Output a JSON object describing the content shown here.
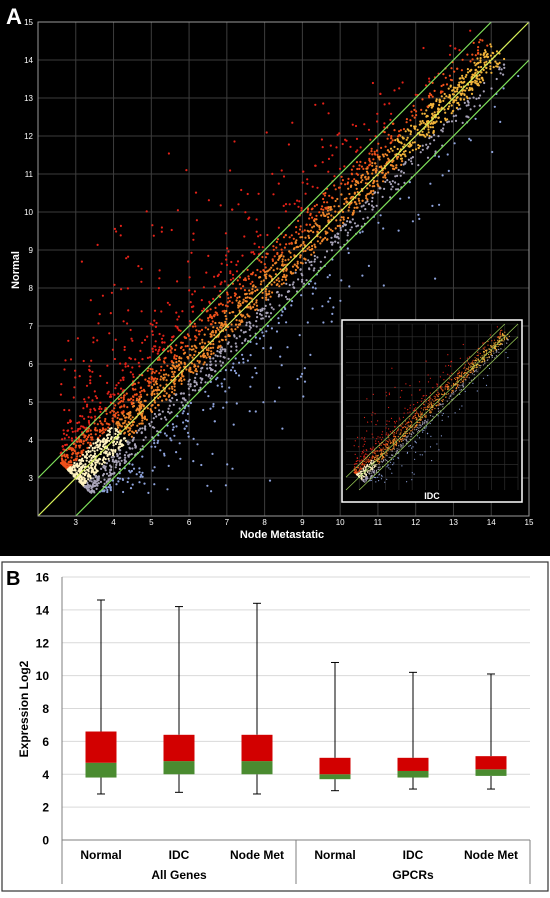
{
  "panel_a": {
    "letter": "A",
    "xlabel": "Node Metastatic",
    "ylabel": "Normal",
    "inset_label": "IDC",
    "x_ticks": [
      "3",
      "4",
      "5",
      "6",
      "7",
      "8",
      "9",
      "10",
      "11",
      "12",
      "13",
      "14",
      "15"
    ],
    "y_ticks": [
      "3",
      "4",
      "5",
      "6",
      "7",
      "8",
      "9",
      "10",
      "11",
      "12",
      "13",
      "14",
      "15"
    ]
  },
  "panel_b": {
    "letter": "B",
    "ylabel": "Expression Log2",
    "y_ticks": [
      "0",
      "2",
      "4",
      "6",
      "8",
      "10",
      "12",
      "14",
      "16"
    ],
    "groups": [
      "All Genes",
      "GPCRs"
    ]
  },
  "chart_data": [
    {
      "type": "scatter",
      "xlabel": "Node Metastatic",
      "ylabel": "Normal",
      "xlim": [
        2,
        15
      ],
      "ylim": [
        2,
        15
      ],
      "grid": true,
      "reference_lines": [
        {
          "label": "identity",
          "intercept": 0
        },
        {
          "label": "upper fold line",
          "intercept": 1
        },
        {
          "label": "lower fold line",
          "intercept": -1
        }
      ],
      "point_colors": {
        "above": "#e8281c",
        "center": "#f28a1e",
        "below": "#8e9fd6",
        "highlight": "#fff6c8"
      },
      "inset": {
        "label": "IDC",
        "type": "scatter"
      }
    },
    {
      "type": "box",
      "ylabel": "Expression Log2",
      "ylim": [
        0,
        16
      ],
      "y_ticks": [
        0,
        2,
        4,
        6,
        8,
        10,
        12,
        14,
        16
      ],
      "categories": [
        "Normal",
        "IDC",
        "Node Met",
        "Normal",
        "IDC",
        "Node Met"
      ],
      "groups": [
        {
          "name": "All Genes",
          "categories": [
            0,
            1,
            2
          ]
        },
        {
          "name": "GPCRs",
          "categories": [
            3,
            4,
            5
          ]
        }
      ],
      "boxes": [
        {
          "min": 2.8,
          "q1": 3.8,
          "median": 4.7,
          "q3": 6.6,
          "max": 14.6
        },
        {
          "min": 2.9,
          "q1": 4.0,
          "median": 4.8,
          "q3": 6.4,
          "max": 14.2
        },
        {
          "min": 2.8,
          "q1": 4.0,
          "median": 4.8,
          "q3": 6.4,
          "max": 14.4
        },
        {
          "min": 3.0,
          "q1": 3.7,
          "median": 4.0,
          "q3": 5.0,
          "max": 10.8
        },
        {
          "min": 3.1,
          "q1": 3.8,
          "median": 4.2,
          "q3": 5.0,
          "max": 10.2
        },
        {
          "min": 3.1,
          "q1": 3.9,
          "median": 4.3,
          "q3": 5.1,
          "max": 10.1
        }
      ],
      "colors": {
        "lower": "#4a8b30",
        "upper": "#d20000"
      }
    }
  ]
}
